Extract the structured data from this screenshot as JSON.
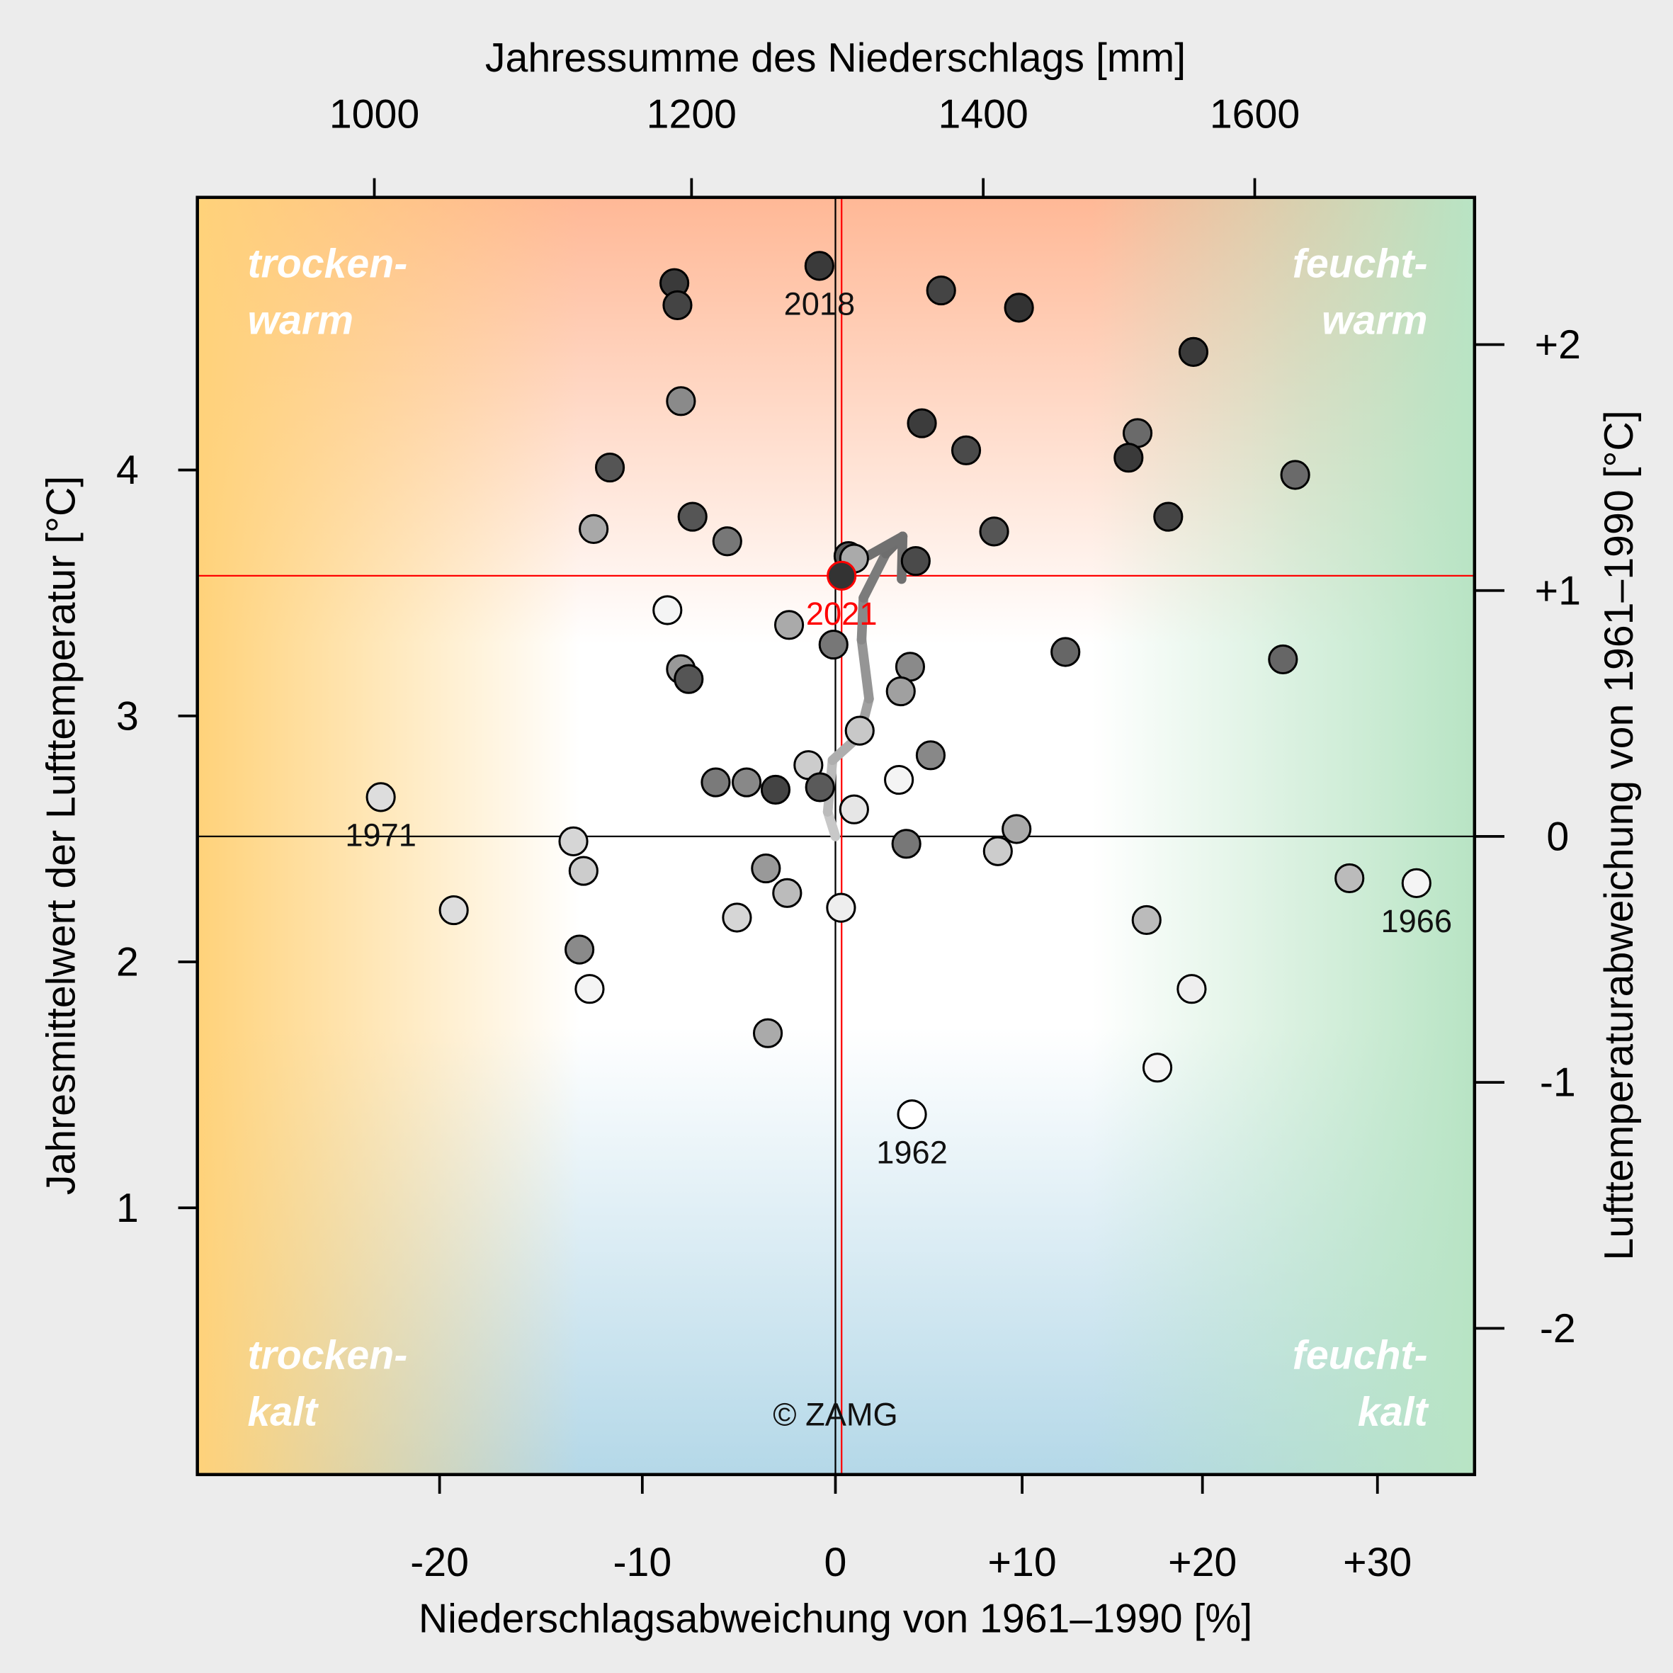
{
  "chart_data": {
    "type": "scatter",
    "title_top": "Jahressumme des Niederschlags [mm]",
    "xlabel": "Niederschlagsabweichung von 1961–1990 [%]",
    "ylabel": "Jahresmittelwert der Lufttemperatur [°C]",
    "ylabel_right": "Lufttemperaturabweichung von 1961–1990 [°C]",
    "x_ticks": [
      {
        "v": -20,
        "label": "-20"
      },
      {
        "v": -10,
        "label": "-10"
      },
      {
        "v": 0,
        "label": "0"
      },
      {
        "v": 10,
        "label": "+10"
      },
      {
        "v": 20,
        "label": "+20"
      },
      {
        "v": 30,
        "label": "+30"
      }
    ],
    "top_ticks": [
      {
        "v": 1000,
        "label": "1000"
      },
      {
        "v": 1200,
        "label": "1200"
      },
      {
        "v": 1400,
        "label": "1400"
      },
      {
        "v": 1600,
        "label": "1600"
      }
    ],
    "y_ticks": [
      {
        "v": 1,
        "label": "1"
      },
      {
        "v": 2,
        "label": "2"
      },
      {
        "v": 3,
        "label": "3"
      },
      {
        "v": 4,
        "label": "4"
      }
    ],
    "right_ticks": [
      {
        "v": -2,
        "label": "-2"
      },
      {
        "v": -1,
        "label": "-1"
      },
      {
        "v": 0,
        "label": "0"
      },
      {
        "v": 1,
        "label": "+1"
      },
      {
        "v": 2,
        "label": "+2"
      }
    ],
    "temp_normal": 2.51,
    "ylim": [
      -0.09,
      5.11
    ],
    "corner_labels": {
      "tl": [
        "trocken-",
        "warm"
      ],
      "tr": [
        "feucht-",
        "warm"
      ],
      "bl": [
        "trocken-",
        "kalt"
      ],
      "br": [
        "feucht-",
        "kalt"
      ]
    },
    "credit": "© ZAMG",
    "highlight": {
      "label": "2021",
      "pct": 0.33,
      "temp": 3.57,
      "color": "#ff0000"
    },
    "colors": {
      "top": "#ffb896",
      "left": "#ffd27a",
      "right": "#b8e4c4",
      "bottom": "#b4d8e8"
    },
    "points": [
      {
        "pct": -0.83,
        "temp": 4.83,
        "fill": "#3a3a3a",
        "label": "2018"
      },
      {
        "pct": -8.34,
        "temp": 4.76,
        "fill": "#3a3a3a"
      },
      {
        "pct": -8.18,
        "temp": 4.67,
        "fill": "#444444"
      },
      {
        "pct": 5.66,
        "temp": 4.73,
        "fill": "#444444"
      },
      {
        "pct": 9.83,
        "temp": 4.66,
        "fill": "#333333"
      },
      {
        "pct": 19.5,
        "temp": 4.48,
        "fill": "#3a3a3a"
      },
      {
        "pct": -8.0,
        "temp": 4.28,
        "fill": "#8a8a8a"
      },
      {
        "pct": 4.63,
        "temp": 4.19,
        "fill": "#3c3c3c"
      },
      {
        "pct": 16.4,
        "temp": 4.15,
        "fill": "#6a6a6a"
      },
      {
        "pct": 7.0,
        "temp": 4.08,
        "fill": "#4a4a4a"
      },
      {
        "pct": 15.9,
        "temp": 4.05,
        "fill": "#3a3a3a"
      },
      {
        "pct": -11.6,
        "temp": 4.01,
        "fill": "#555555"
      },
      {
        "pct": 25.3,
        "temp": 3.98,
        "fill": "#6a6a6a"
      },
      {
        "pct": -7.4,
        "temp": 3.81,
        "fill": "#555555"
      },
      {
        "pct": 18.1,
        "temp": 3.81,
        "fill": "#444444"
      },
      {
        "pct": -12.4,
        "temp": 3.76,
        "fill": "#a8a8a8"
      },
      {
        "pct": 8.5,
        "temp": 3.75,
        "fill": "#555555"
      },
      {
        "pct": -5.6,
        "temp": 3.71,
        "fill": "#777777"
      },
      {
        "pct": 0.7,
        "temp": 3.65,
        "fill": "#5a5a5a"
      },
      {
        "pct": 1.0,
        "temp": 3.64,
        "fill": "#aaaaaa"
      },
      {
        "pct": 4.3,
        "temp": 3.63,
        "fill": "#4a4a4a"
      },
      {
        "pct": -8.7,
        "temp": 3.43,
        "fill": "#f4f4f4"
      },
      {
        "pct": -2.4,
        "temp": 3.37,
        "fill": "#aaaaaa"
      },
      {
        "pct": -0.1,
        "temp": 3.29,
        "fill": "#777777"
      },
      {
        "pct": 12.4,
        "temp": 3.26,
        "fill": "#666666"
      },
      {
        "pct": 24.6,
        "temp": 3.23,
        "fill": "#666666"
      },
      {
        "pct": -8.0,
        "temp": 3.19,
        "fill": "#999999"
      },
      {
        "pct": -7.6,
        "temp": 3.15,
        "fill": "#555555"
      },
      {
        "pct": 4.0,
        "temp": 3.2,
        "fill": "#8a8a8a"
      },
      {
        "pct": 3.5,
        "temp": 3.1,
        "fill": "#a0a0a0"
      },
      {
        "pct": 1.3,
        "temp": 2.94,
        "fill": "#c8c8c8"
      },
      {
        "pct": 5.1,
        "temp": 2.84,
        "fill": "#888888"
      },
      {
        "pct": -6.2,
        "temp": 2.73,
        "fill": "#7a7a7a"
      },
      {
        "pct": -4.6,
        "temp": 2.73,
        "fill": "#888888"
      },
      {
        "pct": -3.1,
        "temp": 2.7,
        "fill": "#444444"
      },
      {
        "pct": -1.4,
        "temp": 2.8,
        "fill": "#cccccc"
      },
      {
        "pct": -0.8,
        "temp": 2.71,
        "fill": "#5a5a5a"
      },
      {
        "pct": 3.4,
        "temp": 2.74,
        "fill": "#f4f4f4"
      },
      {
        "pct": 1.0,
        "temp": 2.62,
        "fill": "#e6e6e6"
      },
      {
        "pct": -22.9,
        "temp": 2.67,
        "fill": "#dddddd",
        "label": "1971"
      },
      {
        "pct": -13.4,
        "temp": 2.49,
        "fill": "#d6d6d6"
      },
      {
        "pct": 3.8,
        "temp": 2.48,
        "fill": "#777777"
      },
      {
        "pct": 9.7,
        "temp": 2.54,
        "fill": "#aaaaaa"
      },
      {
        "pct": 8.7,
        "temp": 2.45,
        "fill": "#cccccc"
      },
      {
        "pct": -12.9,
        "temp": 2.37,
        "fill": "#cccccc"
      },
      {
        "pct": -3.6,
        "temp": 2.38,
        "fill": "#999999"
      },
      {
        "pct": -2.5,
        "temp": 2.28,
        "fill": "#bbbbbb"
      },
      {
        "pct": 28.4,
        "temp": 2.34,
        "fill": "#bbbbbb"
      },
      {
        "pct": 32.3,
        "temp": 2.32,
        "fill": "#f4f4f4",
        "label": "1966"
      },
      {
        "pct": -19.3,
        "temp": 2.21,
        "fill": "#dddddd"
      },
      {
        "pct": 0.3,
        "temp": 2.22,
        "fill": "#eeeeee"
      },
      {
        "pct": -5.1,
        "temp": 2.18,
        "fill": "#d6d6d6"
      },
      {
        "pct": 16.9,
        "temp": 2.17,
        "fill": "#bbbbbb"
      },
      {
        "pct": -13.1,
        "temp": 2.05,
        "fill": "#8a8a8a"
      },
      {
        "pct": -12.6,
        "temp": 1.89,
        "fill": "#f4f4f4"
      },
      {
        "pct": 19.4,
        "temp": 1.89,
        "fill": "#eeeeee"
      },
      {
        "pct": -3.5,
        "temp": 1.71,
        "fill": "#aaaaaa"
      },
      {
        "pct": 17.5,
        "temp": 1.57,
        "fill": "#f4f4f4"
      },
      {
        "pct": 4.1,
        "temp": 1.38,
        "fill": "#ffffff",
        "label": "1962"
      },
      {
        "pct": 0.33,
        "temp": 3.57,
        "fill": "#333333",
        "highlight": true
      }
    ],
    "trend": [
      {
        "pct": 0.0,
        "temp": 2.51
      },
      {
        "pct": -0.4,
        "temp": 2.61
      },
      {
        "pct": -0.15,
        "temp": 2.82
      },
      {
        "pct": 1.3,
        "temp": 2.92
      },
      {
        "pct": 1.8,
        "temp": 3.07
      },
      {
        "pct": 1.4,
        "temp": 3.31
      },
      {
        "pct": 1.5,
        "temp": 3.48
      },
      {
        "pct": 2.7,
        "temp": 3.66
      },
      {
        "pct": 3.6,
        "temp": 3.73
      }
    ]
  }
}
